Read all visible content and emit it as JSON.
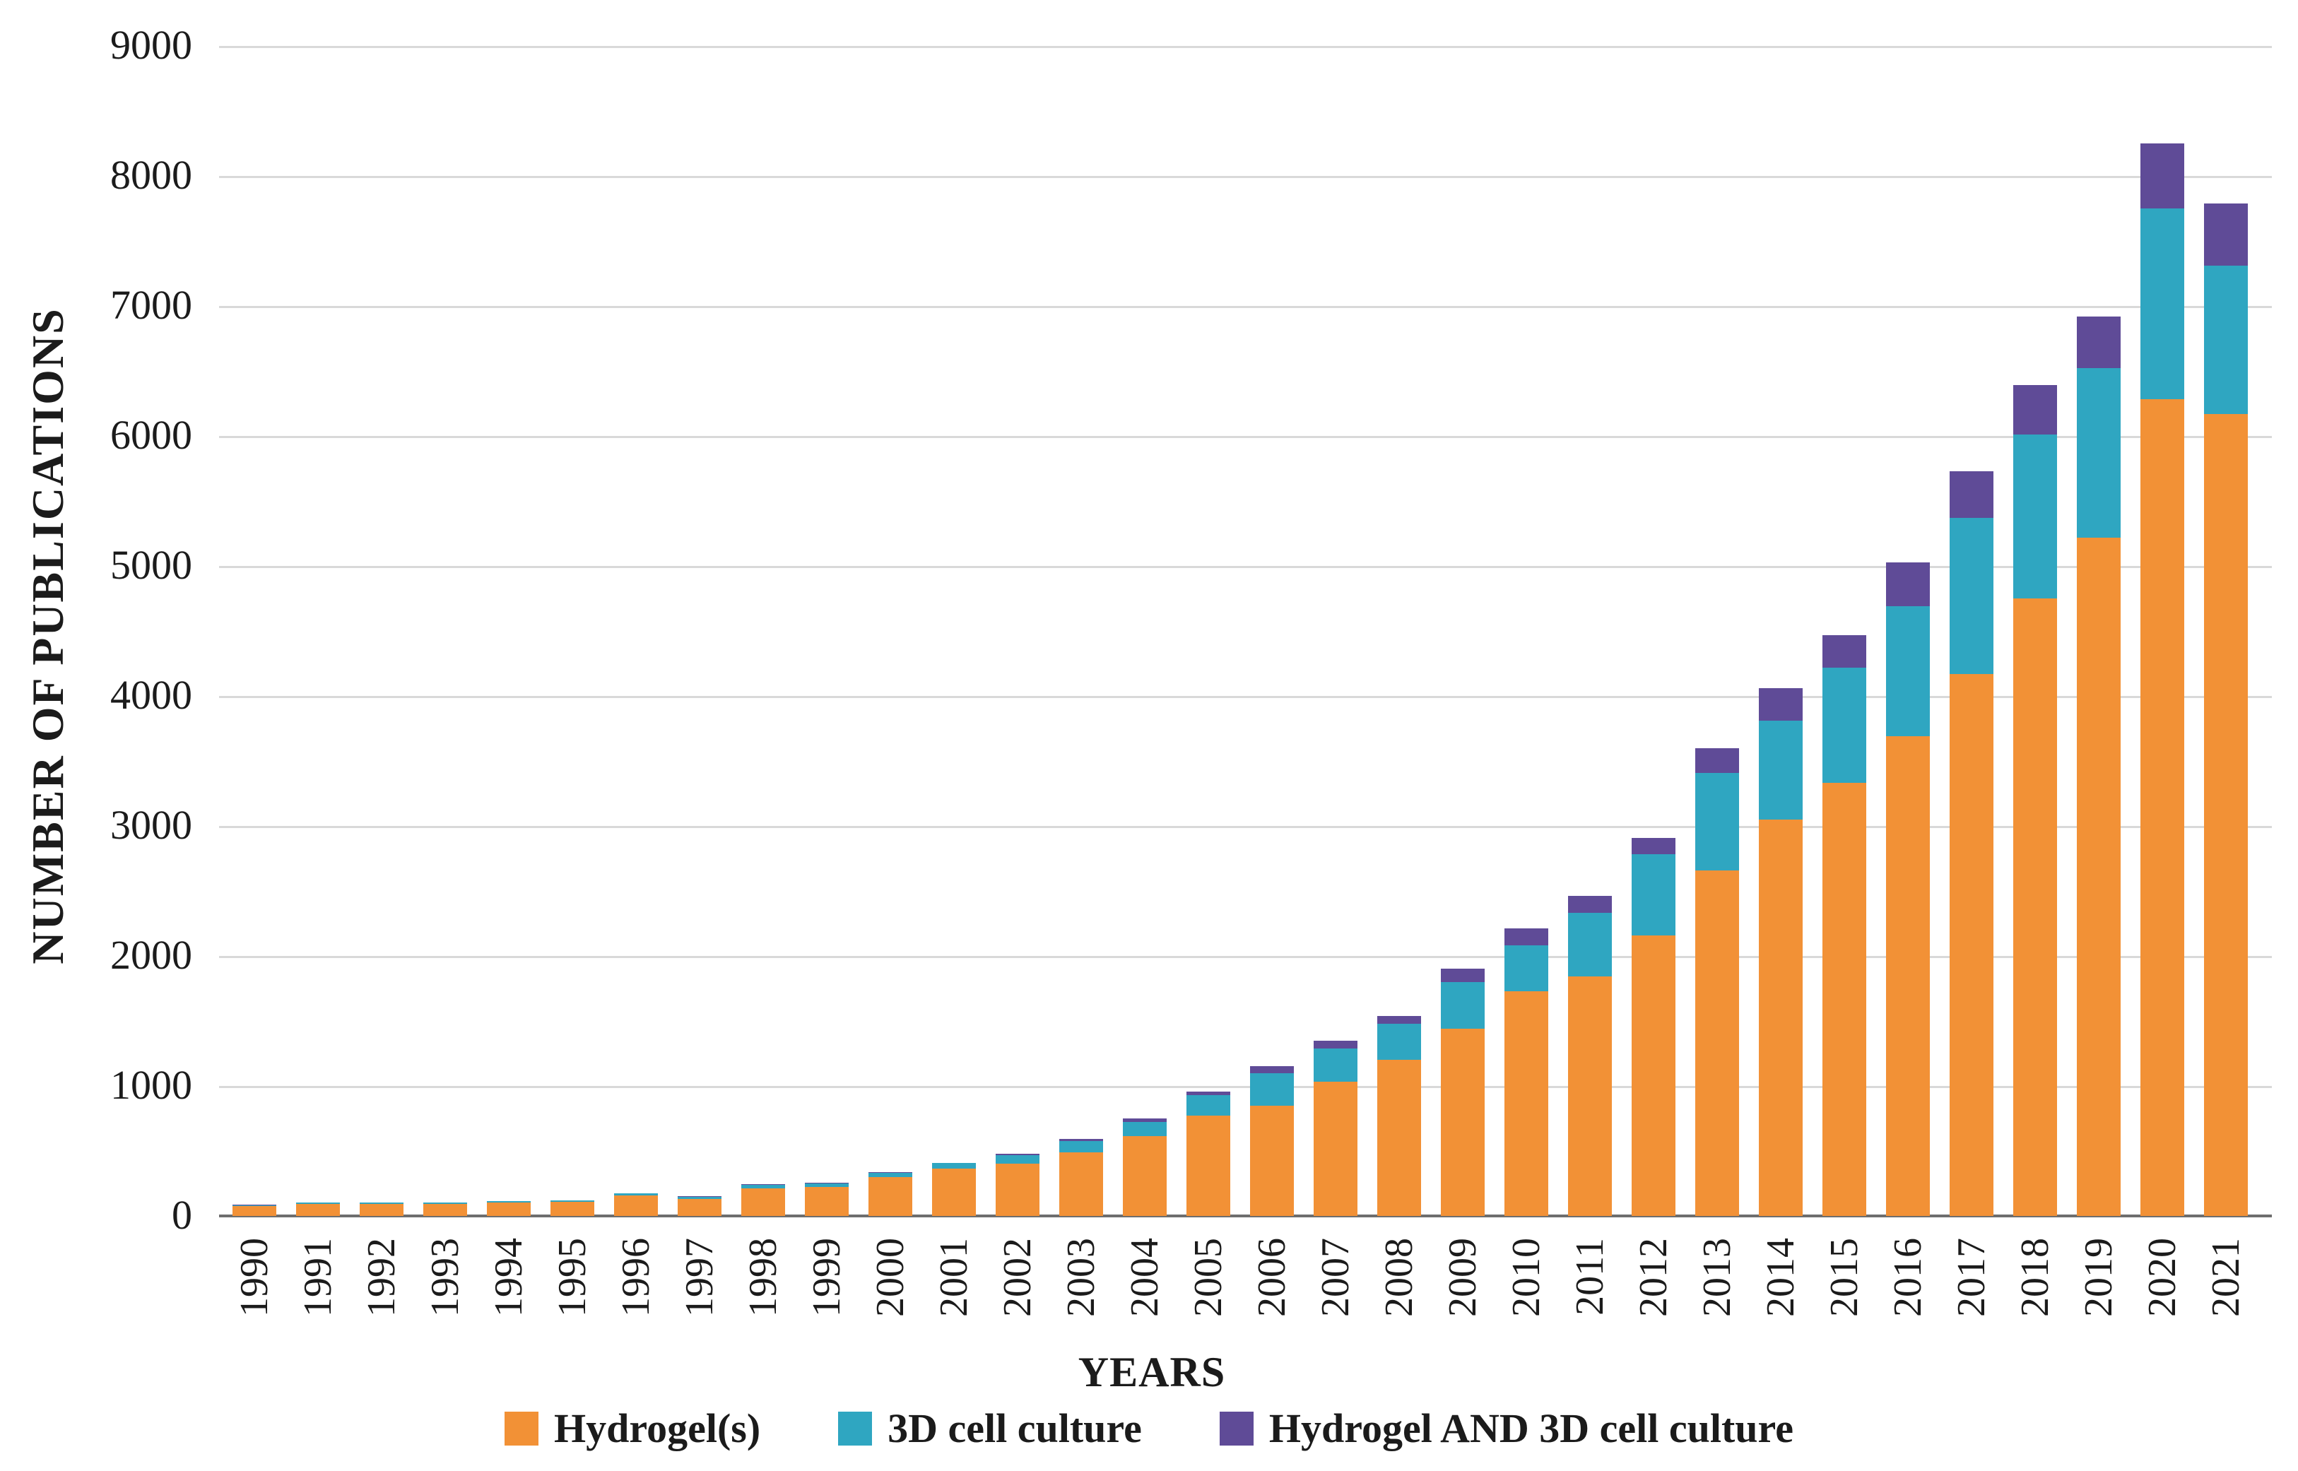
{
  "figure": {
    "y_axis_title": "NUMBER OF PUBLICATIONS",
    "x_axis_title": "YEARS",
    "background": "#ffffff",
    "gridline_color": "#d9d9d9",
    "axis_line_color": "#6e6e6e",
    "text_color": "#1b1b1b"
  },
  "legend": {
    "items": [
      {
        "label": "Hydrogel(s)",
        "color": "#f29136"
      },
      {
        "label": "3D cell culture",
        "color": "#2fa6c1"
      },
      {
        "label": "Hydrogel AND 3D cell culture",
        "color": "#5f4b97"
      }
    ]
  },
  "chart_data": {
    "type": "bar",
    "stacked": true,
    "title": "",
    "xlabel": "YEARS",
    "ylabel": "NUMBER OF PUBLICATIONS",
    "ylim": [
      0,
      9000
    ],
    "ytick_step": 1000,
    "grid": true,
    "legend_position": "bottom",
    "categories": [
      "1990",
      "1991",
      "1992",
      "1993",
      "1994",
      "1995",
      "1996",
      "1997",
      "1998",
      "1999",
      "2000",
      "2001",
      "2002",
      "2003",
      "2004",
      "2005",
      "2006",
      "2007",
      "2008",
      "2009",
      "2010",
      "2011",
      "2012",
      "2013",
      "2014",
      "2015",
      "2016",
      "2017",
      "2018",
      "2019",
      "2020",
      "2021"
    ],
    "series": [
      {
        "name": "Hydrogel(s)",
        "color": "#f29136",
        "values": [
          75,
          95,
          92,
          93,
          102,
          108,
          158,
          132,
          210,
          225,
          300,
          365,
          400,
          490,
          615,
          770,
          850,
          1030,
          1200,
          1440,
          1730,
          1840,
          2160,
          2660,
          3050,
          3330,
          3690,
          4170,
          4750,
          5220,
          6280,
          6170
        ]
      },
      {
        "name": "3D cell culture",
        "color": "#2fa6c1",
        "values": [
          8,
          8,
          9,
          10,
          11,
          12,
          14,
          15,
          30,
          25,
          30,
          40,
          70,
          85,
          110,
          160,
          250,
          260,
          280,
          360,
          350,
          490,
          620,
          750,
          760,
          890,
          1000,
          1200,
          1260,
          1300,
          1470,
          1140
        ]
      },
      {
        "name": "Hydrogel AND 3D cell culture",
        "color": "#5f4b97",
        "values": [
          2,
          2,
          2,
          2,
          2,
          2,
          3,
          3,
          5,
          5,
          5,
          5,
          10,
          15,
          25,
          25,
          50,
          60,
          60,
          100,
          130,
          130,
          130,
          190,
          250,
          250,
          340,
          360,
          380,
          400,
          500,
          480
        ]
      }
    ]
  }
}
